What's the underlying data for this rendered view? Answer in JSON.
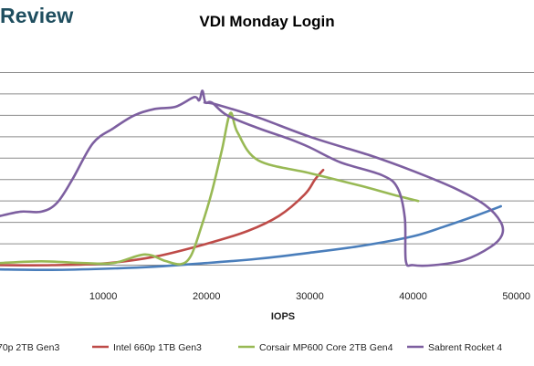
{
  "brand": {
    "text": "Review",
    "color": "#1f4e5f"
  },
  "chart_data": {
    "type": "line",
    "title": "VDI Monday Login",
    "xlabel": "IOPS",
    "ylabel": "",
    "xlim": [
      0,
      50000
    ],
    "ylim": [
      0,
      1100
    ],
    "x_ticks": [
      "10000",
      "20000",
      "30000",
      "40000",
      "50000"
    ],
    "y_grid_values": [
      100,
      200,
      300,
      400,
      500,
      600,
      700,
      800,
      900,
      1000
    ],
    "grid": "horizontal",
    "legend_position": "bottom",
    "series": [
      {
        "name": "70p 2TB Gen3",
        "color": "#4a7ebb",
        "points": [
          [
            0,
            80
          ],
          [
            5000,
            78
          ],
          [
            10000,
            83
          ],
          [
            15000,
            93
          ],
          [
            20000,
            110
          ],
          [
            25000,
            130
          ],
          [
            30000,
            158
          ],
          [
            35000,
            190
          ],
          [
            40000,
            235
          ],
          [
            43000,
            280
          ],
          [
            46000,
            330
          ],
          [
            48500,
            375
          ]
        ]
      },
      {
        "name": "Intel 660p 1TB Gen3",
        "color": "#be4b48",
        "points": [
          [
            0,
            100
          ],
          [
            5000,
            100
          ],
          [
            10000,
            108
          ],
          [
            15000,
            140
          ],
          [
            20000,
            200
          ],
          [
            24000,
            260
          ],
          [
            27000,
            330
          ],
          [
            29500,
            430
          ],
          [
            30500,
            500
          ],
          [
            31300,
            545
          ]
        ]
      },
      {
        "name": "Corsair MP600 Core 2TB Gen4",
        "color": "#98b954",
        "points": [
          [
            0,
            110
          ],
          [
            4000,
            118
          ],
          [
            8000,
            110
          ],
          [
            11000,
            110
          ],
          [
            14000,
            150
          ],
          [
            16000,
            120
          ],
          [
            17500,
            105
          ],
          [
            18500,
            145
          ],
          [
            19500,
            280
          ],
          [
            20500,
            440
          ],
          [
            21500,
            640
          ],
          [
            22300,
            810
          ],
          [
            23000,
            720
          ],
          [
            25000,
            590
          ],
          [
            30000,
            530
          ],
          [
            35000,
            470
          ],
          [
            38000,
            430
          ],
          [
            40500,
            400
          ]
        ]
      },
      {
        "name": "Sabrent Rocket 4",
        "color": "#7d5fa0",
        "points": [
          [
            0,
            330
          ],
          [
            2000,
            350
          ],
          [
            4000,
            350
          ],
          [
            5500,
            390
          ],
          [
            7000,
            500
          ],
          [
            9000,
            670
          ],
          [
            11000,
            740
          ],
          [
            13000,
            800
          ],
          [
            15000,
            830
          ],
          [
            17000,
            840
          ],
          [
            18800,
            885
          ],
          [
            19300,
            870
          ],
          [
            19600,
            915
          ],
          [
            19900,
            860
          ],
          [
            20500,
            860
          ],
          [
            22000,
            800
          ],
          [
            25000,
            740
          ],
          [
            28000,
            690
          ],
          [
            30000,
            650
          ],
          [
            33000,
            580
          ],
          [
            37000,
            520
          ],
          [
            38500,
            460
          ],
          [
            39200,
            320
          ],
          [
            39300,
            120
          ],
          [
            40000,
            100
          ],
          [
            42000,
            100
          ],
          [
            45000,
            125
          ],
          [
            47500,
            185
          ],
          [
            48600,
            240
          ],
          [
            48500,
            300
          ],
          [
            47000,
            380
          ],
          [
            44000,
            460
          ],
          [
            40000,
            540
          ],
          [
            36000,
            610
          ],
          [
            30000,
            700
          ],
          [
            25000,
            790
          ],
          [
            21000,
            850
          ],
          [
            19800,
            860
          ]
        ]
      }
    ]
  }
}
